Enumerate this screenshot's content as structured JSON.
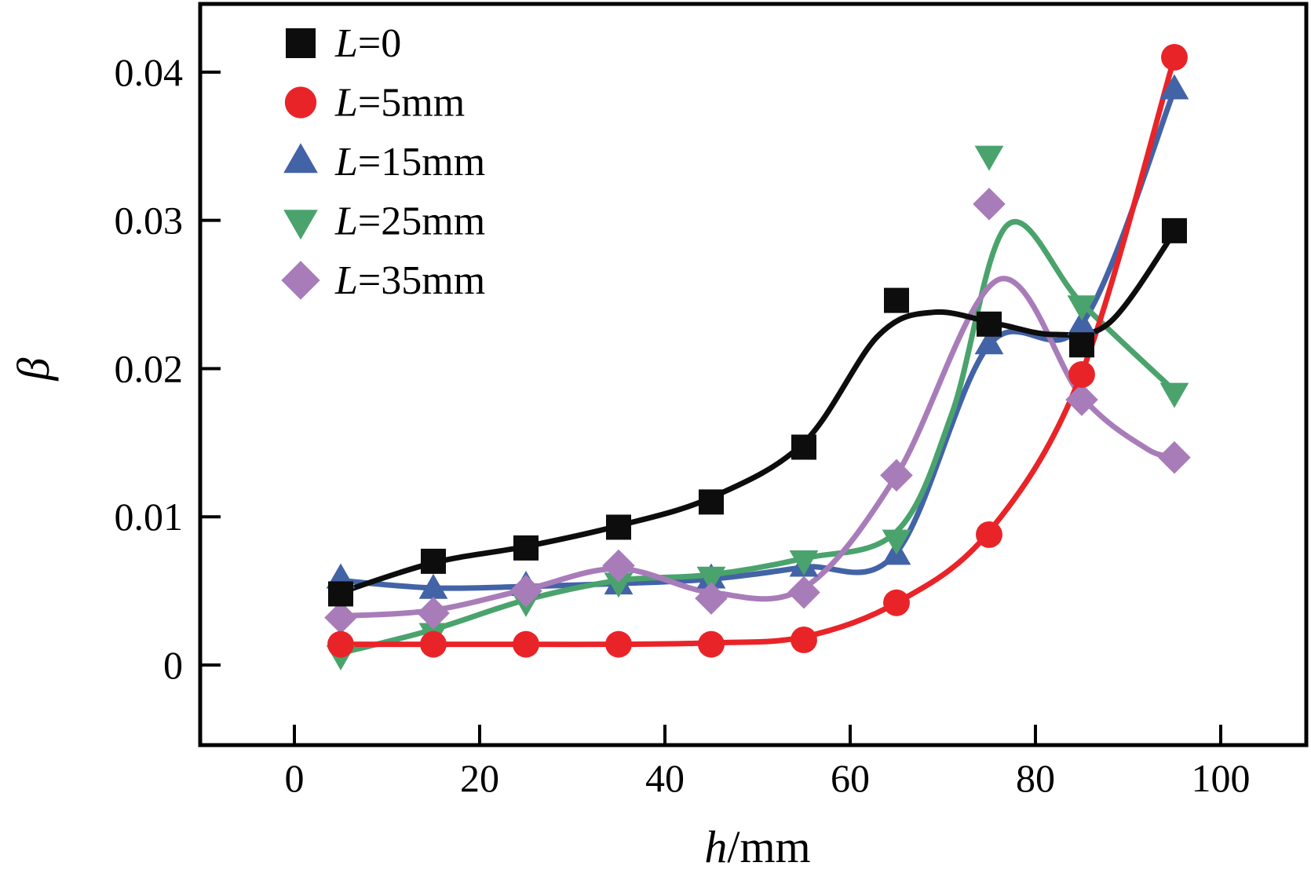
{
  "figure": {
    "background": "#ffffff",
    "frame_color": "#000000",
    "text_color": "#000000"
  },
  "chart_data": {
    "type": "scatter",
    "subtype": "scatter-with-smoothed-lines",
    "title": "",
    "xlabel": "h/mm",
    "xlabel_parts": {
      "italic": "h",
      "normal": "/mm"
    },
    "ylabel": "β",
    "grid": false,
    "legend_position": "top-left-inside",
    "x_range": [
      -10.17,
      109.24
    ],
    "y_range": [
      -0.0054,
      0.0446
    ],
    "x_ticks": [
      0,
      20,
      40,
      60,
      80,
      100
    ],
    "x_tick_labels": [
      "0",
      "20",
      "40",
      "60",
      "80",
      "100"
    ],
    "y_ticks": [
      0,
      0.01,
      0.02,
      0.03,
      0.04
    ],
    "y_tick_labels": [
      "0",
      "0.01",
      "0.02",
      "0.03",
      "0.04"
    ],
    "x": [
      5,
      15,
      25,
      35,
      45,
      55,
      65,
      75,
      85,
      95
    ],
    "series": [
      {
        "name": "L=0",
        "legend_italic": "L",
        "legend_rest": "=0",
        "marker": "square",
        "color": "#0d0d0d",
        "values": [
          0.0048,
          0.007,
          0.0079,
          0.0093,
          0.011,
          0.0147,
          0.0246,
          0.023,
          0.0216,
          0.0293
        ],
        "curve": [
          [
            5,
            0.0049
          ],
          [
            15,
            0.0069
          ],
          [
            25,
            0.008
          ],
          [
            35,
            0.0094
          ],
          [
            45,
            0.0113
          ],
          [
            55,
            0.015
          ],
          [
            63,
            0.0222
          ],
          [
            69,
            0.0238
          ],
          [
            76,
            0.023
          ],
          [
            82,
            0.0223
          ],
          [
            88,
            0.0231
          ],
          [
            95,
            0.0292
          ]
        ]
      },
      {
        "name": "L=5mm",
        "legend_italic": "L",
        "legend_rest": "=5mm",
        "marker": "circle",
        "color": "#e92428",
        "values": [
          0.0014,
          0.0014,
          0.0014,
          0.0014,
          0.0014,
          0.0017,
          0.0042,
          0.0088,
          0.0196,
          0.041
        ],
        "curve": [
          [
            5,
            0.0014
          ],
          [
            15,
            0.0014
          ],
          [
            25,
            0.0014
          ],
          [
            35,
            0.0014
          ],
          [
            45,
            0.0015
          ],
          [
            55,
            0.0019
          ],
          [
            65,
            0.0042
          ],
          [
            75,
            0.009
          ],
          [
            85,
            0.0197
          ],
          [
            95,
            0.041
          ]
        ]
      },
      {
        "name": "L=15mm",
        "legend_italic": "L",
        "legend_rest": "=15mm",
        "marker": "triangle-up",
        "color": "#4363a7",
        "values": [
          0.0058,
          0.0051,
          0.0053,
          0.0054,
          0.0058,
          0.0066,
          0.0074,
          0.0216,
          0.0229,
          0.0388
        ],
        "curve": [
          [
            5,
            0.0057
          ],
          [
            15,
            0.0052
          ],
          [
            25,
            0.0053
          ],
          [
            35,
            0.0055
          ],
          [
            45,
            0.0058
          ],
          [
            55,
            0.0066
          ],
          [
            65,
            0.0076
          ],
          [
            75,
            0.0216
          ],
          [
            85,
            0.023
          ],
          [
            95,
            0.0388
          ]
        ]
      },
      {
        "name": "L=25mm",
        "legend_italic": "L",
        "legend_rest": "=25mm",
        "marker": "triangle-down",
        "color": "#4aa36c",
        "values": [
          0.0007,
          0.0022,
          0.0043,
          0.0056,
          0.006,
          0.0071,
          0.0085,
          0.0344,
          0.0243,
          0.0184
        ],
        "curve": [
          [
            5,
            0.0008
          ],
          [
            15,
            0.0024
          ],
          [
            25,
            0.0044
          ],
          [
            35,
            0.0057
          ],
          [
            45,
            0.0061
          ],
          [
            55,
            0.0072
          ],
          [
            65,
            0.009
          ],
          [
            71,
            0.017
          ],
          [
            77,
            0.0297
          ],
          [
            85,
            0.0244
          ],
          [
            95,
            0.0185
          ]
        ]
      },
      {
        "name": "L=35mm",
        "legend_italic": "L",
        "legend_rest": "=35mm",
        "marker": "diamond",
        "color": "#a87cb9",
        "values": [
          0.0032,
          0.0035,
          0.005,
          0.0067,
          0.0045,
          0.0049,
          0.0128,
          0.0311,
          0.0179,
          0.014
        ],
        "curve": [
          [
            5,
            0.0033
          ],
          [
            15,
            0.0037
          ],
          [
            25,
            0.0051
          ],
          [
            35,
            0.0065
          ],
          [
            45,
            0.0049
          ],
          [
            55,
            0.0052
          ],
          [
            65,
            0.0128
          ],
          [
            76,
            0.026
          ],
          [
            85,
            0.0181
          ],
          [
            92,
            0.0146
          ],
          [
            95,
            0.0141
          ]
        ]
      }
    ]
  }
}
